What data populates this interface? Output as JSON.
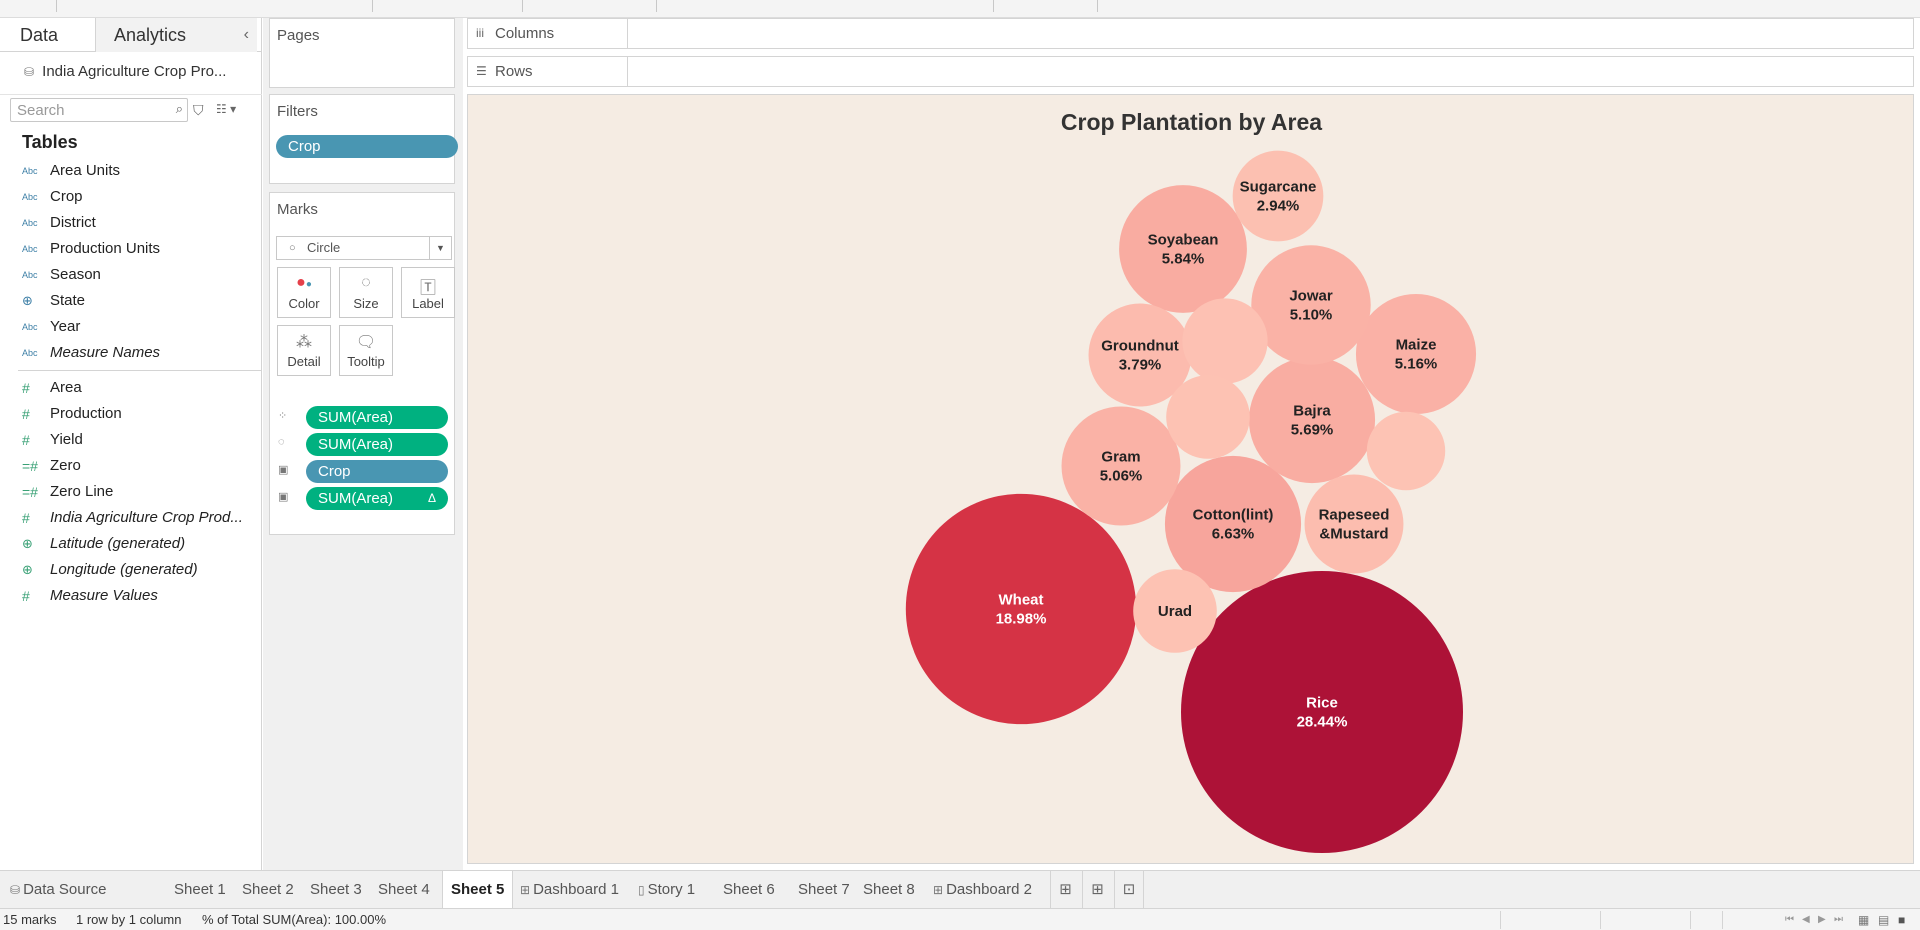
{
  "data_pane": {
    "tab_data": "Data",
    "tab_analytics": "Analytics",
    "collapse_glyph": "‹",
    "datasource_name": "India Agriculture Crop Pro...",
    "search_placeholder": "Search",
    "tables_heading": "Tables",
    "dimensions": [
      {
        "type": "Abc",
        "name": "Area Units",
        "italic": false
      },
      {
        "type": "Abc",
        "name": "Crop",
        "italic": false
      },
      {
        "type": "Abc",
        "name": "District",
        "italic": false
      },
      {
        "type": "Abc",
        "name": "Production Units",
        "italic": false
      },
      {
        "type": "Abc",
        "name": "Season",
        "italic": false
      },
      {
        "type": "geo",
        "name": "State",
        "italic": false
      },
      {
        "type": "Abc",
        "name": "Year",
        "italic": false
      },
      {
        "type": "Abc",
        "name": "Measure Names",
        "italic": true
      }
    ],
    "measures": [
      {
        "type": "#",
        "name": "Area",
        "italic": false
      },
      {
        "type": "#",
        "name": "Production",
        "italic": false
      },
      {
        "type": "#",
        "name": "Yield",
        "italic": false
      },
      {
        "type": "=#",
        "name": "Zero",
        "italic": false
      },
      {
        "type": "=#",
        "name": "Zero Line",
        "italic": false
      },
      {
        "type": "#",
        "name": "India Agriculture Crop Prod...",
        "italic": true
      },
      {
        "type": "geo",
        "name": "Latitude (generated)",
        "italic": true
      },
      {
        "type": "geo",
        "name": "Longitude (generated)",
        "italic": true
      },
      {
        "type": "#",
        "name": "Measure Values",
        "italic": true
      }
    ]
  },
  "shelves": {
    "pages_title": "Pages",
    "filters_title": "Filters",
    "filter_pill": "Crop",
    "marks_title": "Marks",
    "mark_type": "Circle",
    "mark_buttons": {
      "color": "Color",
      "size": "Size",
      "label": "Label",
      "detail": "Detail",
      "tooltip": "Tooltip"
    },
    "mark_fields": {
      "color": "SUM(Area)",
      "size": "SUM(Area)",
      "label_crop": "Crop",
      "label_area": "SUM(Area)",
      "delta_glyph": "Δ"
    },
    "columns_label": "Columns",
    "rows_label": "Rows"
  },
  "chart_data": {
    "type": "bubble",
    "title": "Crop Plantation by Area",
    "color_scale": [
      "#fdc3b4",
      "#e5404a",
      "#ad1237"
    ],
    "series": [
      {
        "name": "Rice",
        "label": "Rice",
        "pct": "28.44%",
        "value": 28.44
      },
      {
        "name": "Wheat",
        "label": "Wheat",
        "pct": "18.98%",
        "value": 18.98
      },
      {
        "name": "Cotton(lint)",
        "label": "Cotton(lint)",
        "pct": "6.63%",
        "value": 6.63
      },
      {
        "name": "Soyabean",
        "label": "Soyabean",
        "pct": "5.84%",
        "value": 5.84
      },
      {
        "name": "Bajra",
        "label": "Bajra",
        "pct": "5.69%",
        "value": 5.69
      },
      {
        "name": "Maize",
        "label": "Maize",
        "pct": "5.16%",
        "value": 5.16
      },
      {
        "name": "Jowar",
        "label": "Jowar",
        "pct": "5.10%",
        "value": 5.1
      },
      {
        "name": "Gram",
        "label": "Gram",
        "pct": "5.06%",
        "value": 5.06
      },
      {
        "name": "Groundnut",
        "label": "Groundnut",
        "pct": "3.79%",
        "value": 3.79
      },
      {
        "name": "Rapeseed &Mustard",
        "label": "Rapeseed\n&Mustard",
        "pct": "",
        "value": 3.5
      },
      {
        "name": "Sugarcane",
        "label": "Sugarcane",
        "pct": "2.94%",
        "value": 2.94
      },
      {
        "name": "Urad",
        "label": "Urad",
        "pct": "",
        "value": 2.5
      },
      {
        "name": "",
        "label": "",
        "pct": "",
        "value": 2.6
      },
      {
        "name": "",
        "label": "",
        "pct": "",
        "value": 2.5
      },
      {
        "name": "",
        "label": "",
        "pct": "",
        "value": 2.2
      }
    ]
  },
  "sheet_tabs": {
    "data_source": "Data Source",
    "sheets": [
      "Sheet 1",
      "Sheet 2",
      "Sheet 3",
      "Sheet 4",
      "Sheet 5",
      "Dashboard 1",
      "Story 1",
      "Sheet 6",
      "Sheet 7",
      "Sheet 8",
      "Dashboard 2"
    ],
    "active": "Sheet 5"
  },
  "status_bar": {
    "marks": "15 marks",
    "rows_cols": "1 row by 1 column",
    "summary": "% of Total SUM(Area): 100.00%"
  }
}
